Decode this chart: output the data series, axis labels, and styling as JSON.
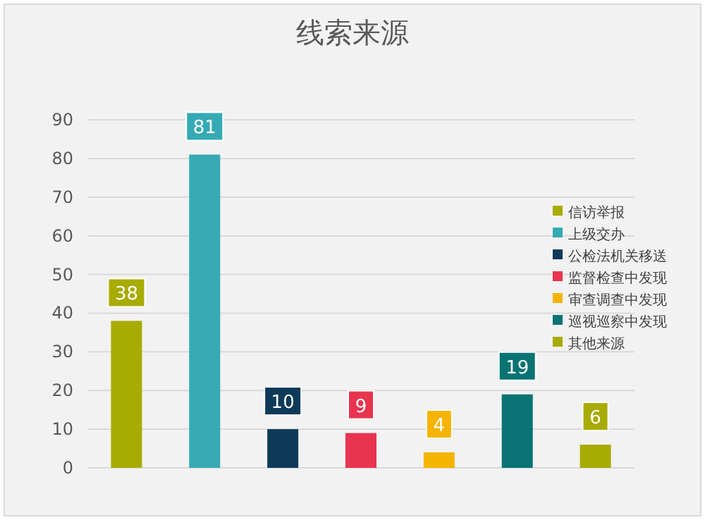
{
  "chart_data": {
    "type": "bar",
    "title": "线索来源",
    "categories": [
      null,
      null,
      null,
      null,
      null,
      null,
      null
    ],
    "series": [
      {
        "name": "信访举报",
        "color": "#a8ab00",
        "values": [
          38,
          null,
          null,
          null,
          null,
          null,
          null
        ]
      },
      {
        "name": "上级交办",
        "color": "#35aab5",
        "values": [
          null,
          81,
          null,
          null,
          null,
          null,
          null
        ]
      },
      {
        "name": "公检法机关移送",
        "color": "#0e3a5a",
        "values": [
          null,
          null,
          10,
          null,
          null,
          null,
          null
        ]
      },
      {
        "name": "监督检查中发现",
        "color": "#e8344f",
        "values": [
          null,
          null,
          null,
          9,
          null,
          null,
          null
        ]
      },
      {
        "name": "审查调查中发现",
        "color": "#f5b400",
        "values": [
          null,
          null,
          null,
          null,
          4,
          null,
          null
        ]
      },
      {
        "name": "巡视巡察中发现",
        "color": "#0a7373",
        "values": [
          null,
          null,
          null,
          null,
          null,
          19,
          null
        ]
      },
      {
        "name": "其他来源",
        "color": "#a8ab00",
        "values": [
          null,
          null,
          null,
          null,
          null,
          null,
          6
        ]
      }
    ],
    "ylim": [
      0,
      90
    ],
    "yticks": [
      0,
      10,
      20,
      30,
      40,
      50,
      60,
      70,
      80,
      90
    ],
    "grid": "y",
    "legend": "right",
    "data_labels": true
  }
}
